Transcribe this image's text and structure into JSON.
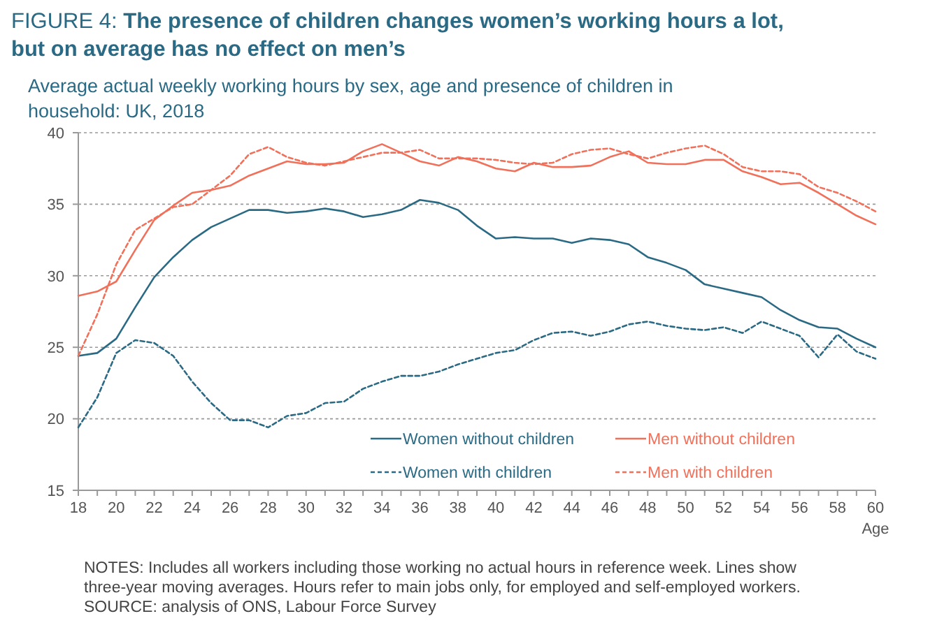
{
  "chart_data": {
    "type": "line",
    "title": "FIGURE 4: The presence of children changes women’s working hours a lot, but on average has no effect on men’s",
    "subtitle": "Average actual weekly working hours by sex, age and presence of children in household: UK, 2018",
    "xlabel": "Age",
    "x": [
      18,
      19,
      20,
      21,
      22,
      23,
      24,
      25,
      26,
      27,
      28,
      29,
      30,
      31,
      32,
      33,
      34,
      35,
      36,
      37,
      38,
      39,
      40,
      41,
      42,
      43,
      44,
      45,
      46,
      47,
      48,
      49,
      50,
      51,
      52,
      53,
      54,
      55,
      56,
      57,
      58,
      59,
      60
    ],
    "series": [
      {
        "name": "Women without children",
        "color": "#2b6a84",
        "line_style": "solid",
        "values": [
          24.4,
          24.6,
          25.6,
          27.8,
          29.9,
          31.3,
          32.5,
          33.4,
          34.0,
          34.6,
          34.6,
          34.4,
          34.5,
          34.7,
          34.5,
          34.1,
          34.3,
          34.6,
          35.3,
          35.1,
          34.6,
          33.5,
          32.6,
          32.7,
          32.6,
          32.6,
          32.3,
          32.6,
          32.5,
          32.2,
          31.3,
          30.9,
          30.4,
          29.4,
          29.1,
          28.8,
          28.5,
          27.6,
          26.9,
          26.4,
          26.3,
          25.6,
          25.0
        ]
      },
      {
        "name": "Men without children",
        "color": "#f0705a",
        "line_style": "solid",
        "values": [
          28.6,
          28.9,
          29.6,
          31.8,
          33.9,
          34.9,
          35.8,
          36.0,
          36.3,
          37.0,
          37.5,
          38.0,
          37.8,
          37.8,
          37.9,
          38.7,
          39.2,
          38.6,
          38.0,
          37.7,
          38.3,
          38.0,
          37.5,
          37.3,
          37.9,
          37.6,
          37.6,
          37.7,
          38.3,
          38.7,
          37.9,
          37.8,
          37.8,
          38.1,
          38.1,
          37.3,
          36.9,
          36.4,
          36.5,
          35.8,
          35.0,
          34.2,
          33.6
        ]
      },
      {
        "name": "Women with children",
        "color": "#2b6a84",
        "line_style": "dashed",
        "values": [
          19.4,
          21.5,
          24.6,
          25.5,
          25.3,
          24.4,
          22.6,
          21.1,
          19.9,
          19.9,
          19.4,
          20.2,
          20.4,
          21.1,
          21.2,
          22.1,
          22.6,
          23.0,
          23.0,
          23.3,
          23.8,
          24.2,
          24.6,
          24.8,
          25.5,
          26.0,
          26.1,
          25.8,
          26.1,
          26.6,
          26.8,
          26.5,
          26.3,
          26.2,
          26.4,
          26.0,
          26.8,
          26.3,
          25.8,
          24.3,
          25.9,
          24.7,
          24.2
        ]
      },
      {
        "name": "Men with children",
        "color": "#f0705a",
        "line_style": "dashed",
        "values": [
          24.4,
          27.3,
          30.8,
          33.2,
          34.0,
          34.8,
          35.0,
          36.0,
          37.0,
          38.5,
          39.0,
          38.3,
          37.9,
          37.7,
          38.0,
          38.3,
          38.6,
          38.6,
          38.8,
          38.2,
          38.2,
          38.2,
          38.1,
          37.9,
          37.8,
          37.9,
          38.5,
          38.8,
          38.9,
          38.5,
          38.2,
          38.6,
          38.9,
          39.1,
          38.5,
          37.6,
          37.3,
          37.3,
          37.1,
          36.2,
          35.8,
          35.2,
          34.5
        ]
      }
    ],
    "xlim": [
      18,
      60
    ],
    "xticks": [
      18,
      {
        "value": 19,
        "label": null
      },
      20,
      {
        "value": 21,
        "label": null
      },
      22,
      {
        "value": 23,
        "label": null
      },
      24,
      {
        "value": 25,
        "label": null
      },
      26,
      {
        "value": 27,
        "label": null
      },
      28,
      {
        "value": 29,
        "label": null
      },
      30,
      {
        "value": 31,
        "label": null
      },
      32,
      {
        "value": 33,
        "label": null
      },
      34,
      {
        "value": 35,
        "label": null
      },
      36,
      {
        "value": 37,
        "label": null
      },
      38,
      {
        "value": 39,
        "label": null
      },
      40,
      {
        "value": 41,
        "label": null
      },
      42,
      {
        "value": 43,
        "label": null
      },
      44,
      {
        "value": 45,
        "label": null
      },
      46,
      {
        "value": 47,
        "label": null
      },
      48,
      {
        "value": 49,
        "label": null
      },
      50,
      {
        "value": 51,
        "label": null
      },
      52,
      {
        "value": 53,
        "label": null
      },
      54,
      {
        "value": 55,
        "label": null
      },
      56,
      {
        "value": 57,
        "label": null
      },
      58,
      {
        "value": 59,
        "label": null
      },
      60
    ],
    "ylim": [
      15,
      40
    ],
    "yticks": [
      15,
      20,
      25,
      30,
      35,
      40
    ],
    "grid": "y",
    "legend": "bottom",
    "annotations": [
      "NOTES: Includes all workers including those working no actual hours in reference week. Lines show three-year moving averages. Hours refer to main jobs only, for employed and self-employed workers.",
      "SOURCE: analysis of ONS, Labour Force Survey"
    ]
  }
}
